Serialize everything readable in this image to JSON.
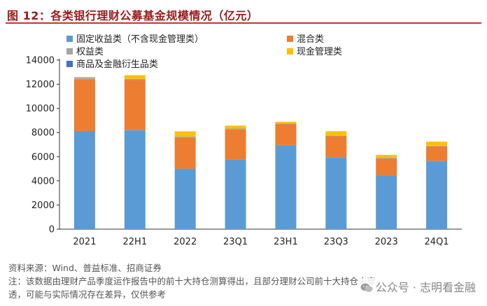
{
  "header": {
    "title": "图 12：各类银行理财公募基金规模情况（亿元）"
  },
  "chart_data": {
    "type": "bar",
    "stacked": true,
    "title": "图 12：各类银行理财公募基金规模情况（亿元）",
    "categories": [
      "2021",
      "22H1",
      "2022",
      "23Q1",
      "23H1",
      "23Q3",
      "2023",
      "24Q1"
    ],
    "series": [
      {
        "name": "固定收益类（不含现金管理类）",
        "color": "#5b9bd5",
        "values": [
          8100,
          8200,
          5000,
          5750,
          6950,
          5950,
          4450,
          5650
        ]
      },
      {
        "name": "混合类",
        "color": "#ed7d31",
        "values": [
          4300,
          4150,
          2600,
          2500,
          1750,
          1750,
          1400,
          1200
        ]
      },
      {
        "name": "权益类",
        "color": "#a5a5a5",
        "values": [
          130,
          100,
          80,
          80,
          60,
          60,
          50,
          50
        ]
      },
      {
        "name": "现金管理类",
        "color": "#ffc000",
        "values": [
          70,
          300,
          420,
          250,
          130,
          350,
          250,
          350
        ]
      },
      {
        "name": "商品及金融衍生品类",
        "color": "#4472c4",
        "values": [
          0,
          0,
          0,
          0,
          0,
          0,
          0,
          0
        ]
      }
    ],
    "ylim": [
      0,
      14000
    ],
    "yticks": [
      0,
      2000,
      4000,
      6000,
      8000,
      10000,
      12000,
      14000
    ],
    "xlabel": "",
    "ylabel": "",
    "legend_position": "top-left"
  },
  "footer": {
    "source": "资料来源：Wind、普益标准、招商证券",
    "note_line1": "注：该数据由理财产品季度运作报告中的前十大持仓测算得出，且部分理财公司前十大持仓未穿",
    "note_line2": "透，可能与实际情况存在差异，仅供参考"
  },
  "watermark": {
    "text": "公众号 · 志明看金融",
    "icon": "wechat-icon"
  }
}
